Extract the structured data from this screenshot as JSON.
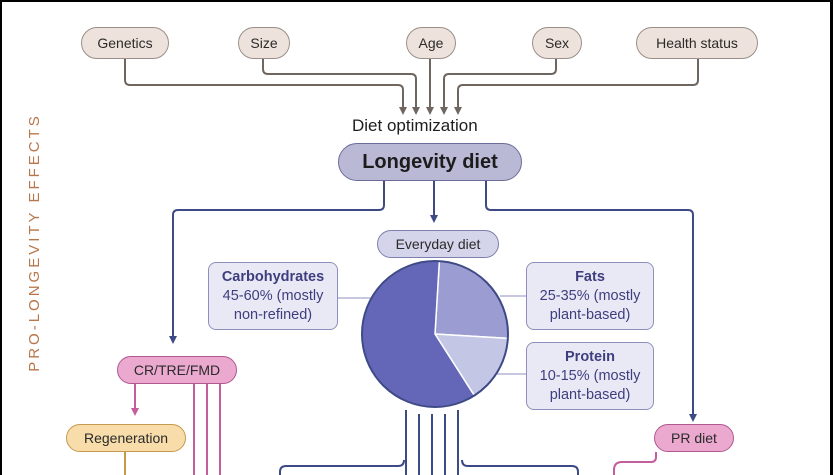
{
  "side_label": "PRO-LONGEVITY EFFECTS",
  "factors": [
    "Genetics",
    "Size",
    "Age",
    "Sex",
    "Health status"
  ],
  "diet_optimization": "Diet optimization",
  "longevity_diet": "Longevity diet",
  "everyday_diet": "Everyday diet",
  "macros": {
    "carbs": {
      "title": "Carbohydrates",
      "line1": "45-60% (mostly",
      "line2": "non-refined)"
    },
    "fats": {
      "title": "Fats",
      "line1": "25-35% (mostly",
      "line2": "plant-based)"
    },
    "protein": {
      "title": "Protein",
      "line1": "10-15% (mostly",
      "line2": "plant-based)"
    }
  },
  "pie": {
    "slices": [
      {
        "name": "Carbohydrates",
        "value": 0.6,
        "color": "#6467b8"
      },
      {
        "name": "Fats",
        "value": 0.25,
        "color": "#9a9cd2"
      },
      {
        "name": "Protein",
        "value": 0.15,
        "color": "#c4c6e6"
      }
    ]
  },
  "cr_tre_fmd": "CR/TRE/FMD",
  "regeneration": "Regeneration",
  "pr_diet": "PR diet",
  "colors": {
    "connector_blue": "#3e4a86",
    "connector_gray": "#6f6660",
    "connector_pink": "#c35d9b",
    "side_label": "#b8764a"
  }
}
